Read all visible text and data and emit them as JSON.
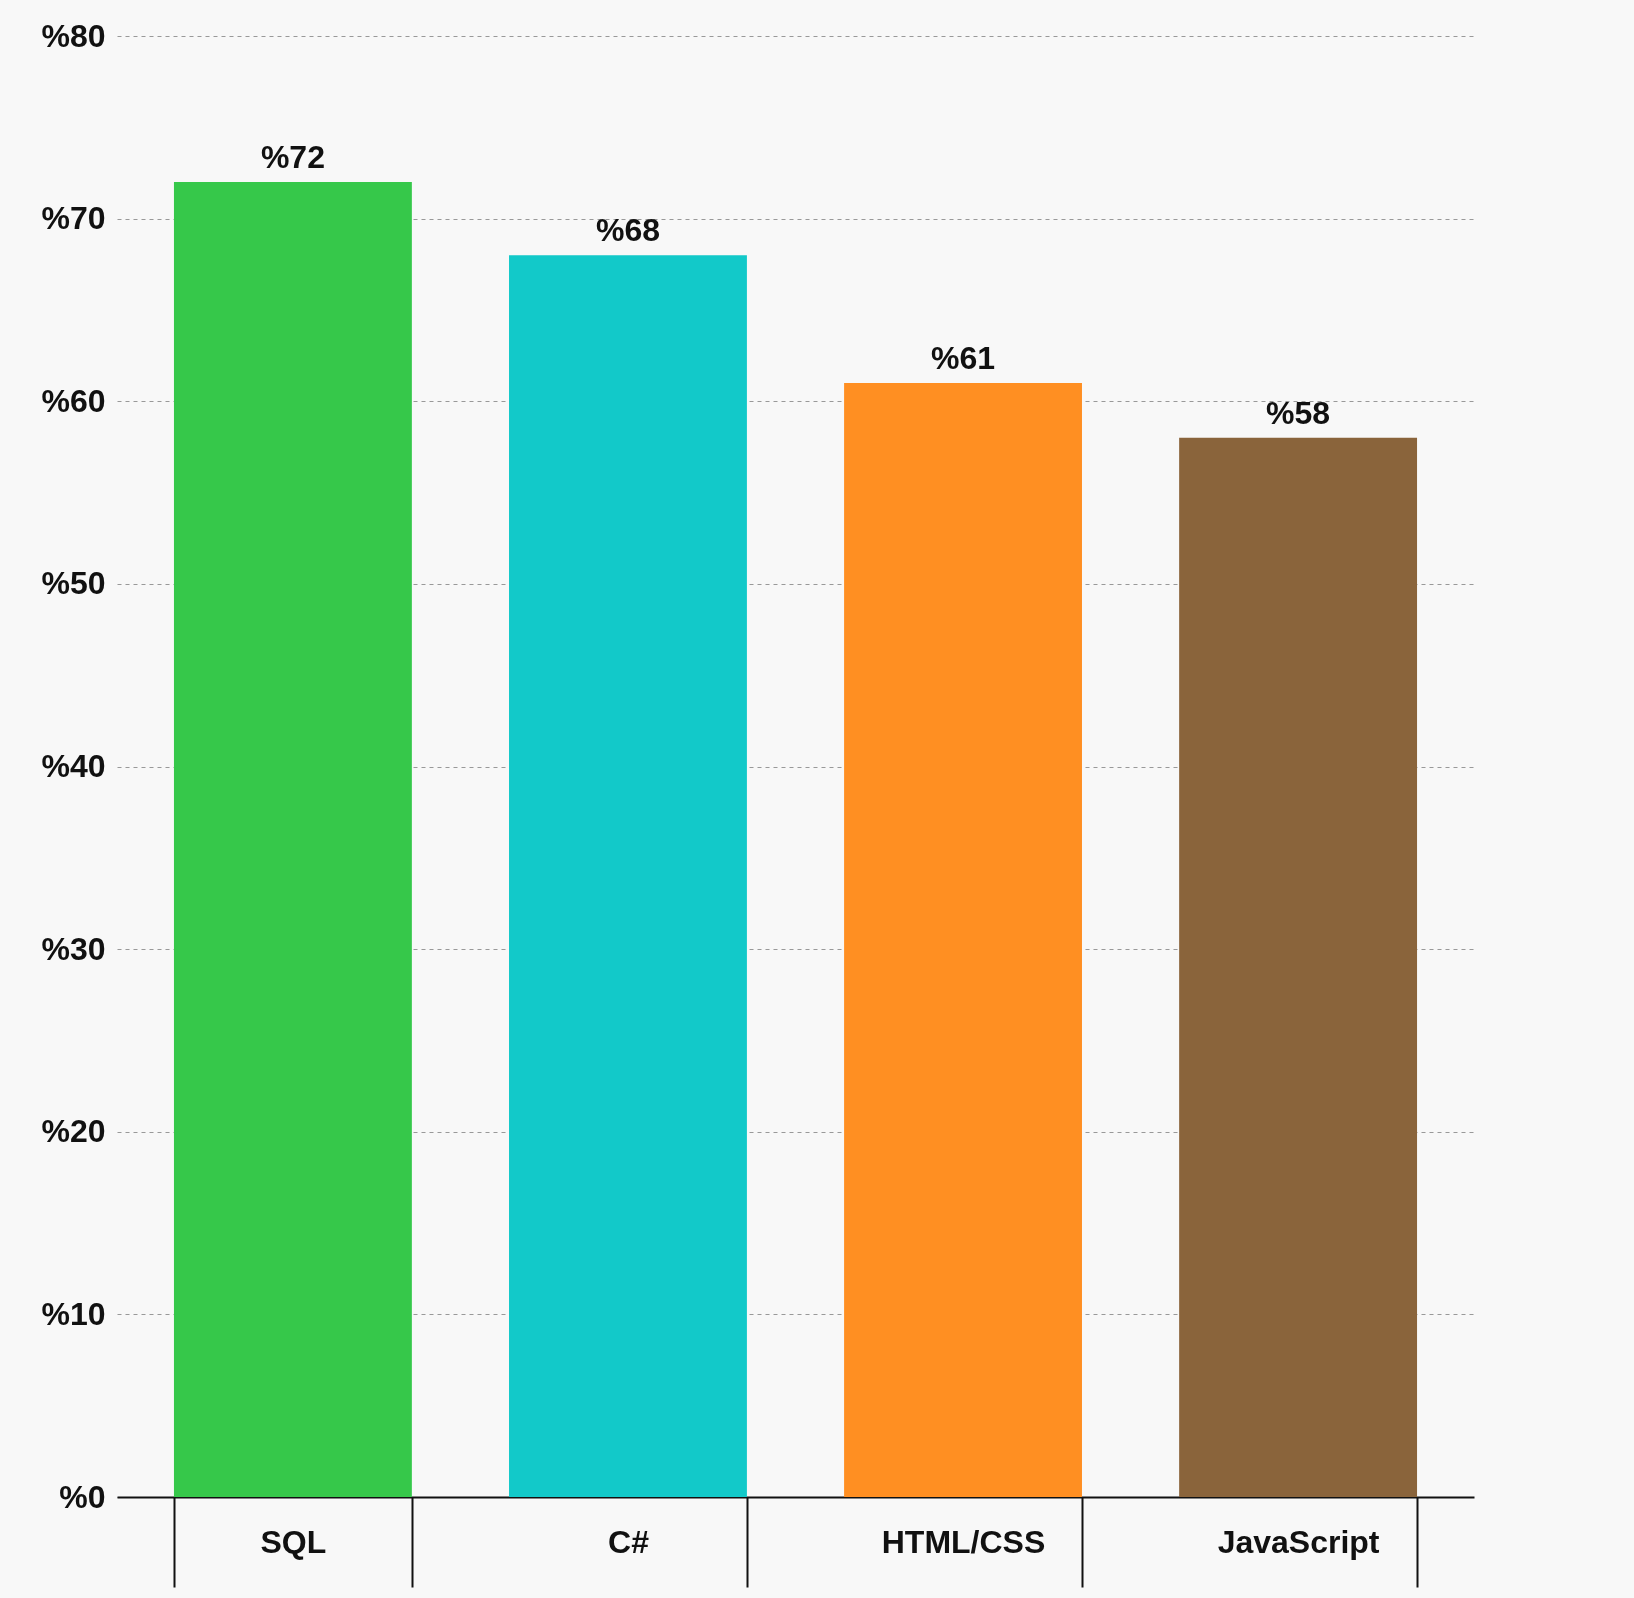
{
  "chart_data": {
    "type": "bar",
    "categories": [
      "SQL",
      "C#",
      "HTML/CSS",
      "JavaScript"
    ],
    "values": [
      72,
      68,
      61,
      58
    ],
    "colors": [
      "#36c84a",
      "#12c9c9",
      "#ff8f22",
      "#8a643b"
    ],
    "ylim": [
      0,
      80
    ],
    "yticks": [
      {
        "value": 0,
        "label": "%0"
      },
      {
        "value": 10,
        "label": "%10"
      },
      {
        "value": 20,
        "label": "%20"
      },
      {
        "value": 30,
        "label": "%30"
      },
      {
        "value": 40,
        "label": "%40"
      },
      {
        "value": 50,
        "label": "%50"
      },
      {
        "value": 60,
        "label": "%60"
      },
      {
        "value": 70,
        "label": "%70"
      },
      {
        "value": 80,
        "label": "%80"
      }
    ],
    "value_labels": [
      "%72",
      "%68",
      "%61",
      "%58"
    ],
    "grid": "y"
  }
}
